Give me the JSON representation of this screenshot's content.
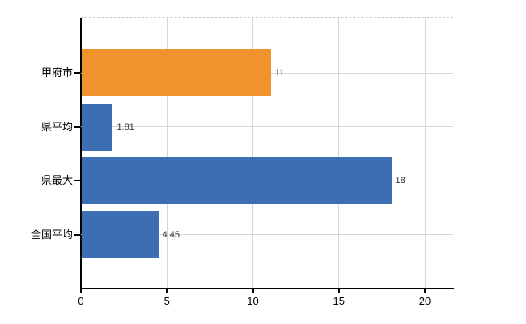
{
  "chart_data": {
    "type": "bar",
    "orientation": "horizontal",
    "title": "",
    "xlabel": "",
    "ylabel": "",
    "categories": [
      "甲府市",
      "県平均",
      "県最大",
      "全国平均"
    ],
    "values": [
      11,
      1.81,
      18,
      4.45
    ],
    "value_labels": [
      "11",
      "1.81",
      "18",
      "4.45"
    ],
    "bar_colors": [
      "#f0932d",
      "#3d6eb3",
      "#3d6eb3",
      "#3d6eb3"
    ],
    "xticks": [
      0,
      5,
      10,
      15,
      20
    ],
    "xtick_labels": [
      "0",
      "5",
      "10",
      "15",
      "20"
    ],
    "xlim": [
      0,
      20
    ],
    "grid": true,
    "legend": false,
    "colors": {
      "highlight_bar": "#f0932d",
      "default_bar": "#3d6eb3",
      "gridline": "#d6d6d6",
      "top_border": "#c9c9c9",
      "axis": "#000000",
      "category_text": "#000000",
      "value_text": "#333333",
      "background": "#ffffff"
    }
  }
}
